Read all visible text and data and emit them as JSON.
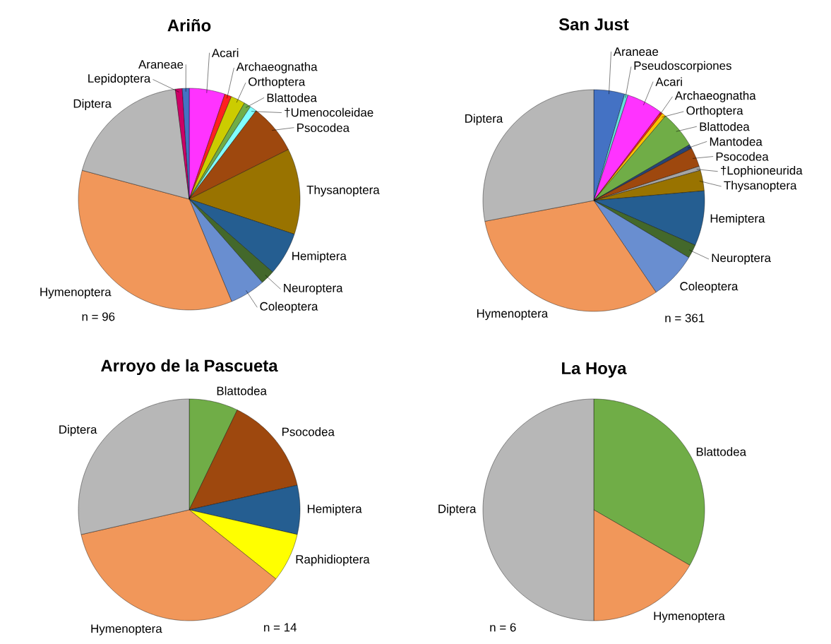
{
  "chart_data": [
    {
      "type": "pie",
      "title": "Ariño",
      "categories": [
        "Acari",
        "Archaeognatha",
        "Orthoptera",
        "Blattodea",
        "†Umenocoleidae",
        "Psocodea",
        "Thysanoptera",
        "Hemiptera",
        "Neuroptera",
        "Coleoptera",
        "Hymenoptera",
        "Diptera",
        "Lepidoptera",
        "Araneae"
      ],
      "values": [
        5.2,
        1.0,
        2.1,
        1.0,
        1.0,
        7.3,
        12.5,
        6.3,
        2.1,
        5.2,
        35.4,
        18.8,
        1.0,
        1.0
      ],
      "colors": [
        "#ff33ff",
        "#ff2020",
        "#cccc00",
        "#70ad47",
        "#80ffff",
        "#9e480e",
        "#997300",
        "#255e91",
        "#43682b",
        "#698ed0",
        "#f1975a",
        "#b7b7b7",
        "#cc0066",
        "#4472c4"
      ],
      "annotations": [
        "n = 96"
      ]
    },
    {
      "type": "pie",
      "title": "San Just",
      "categories": [
        "Araneae",
        "Pseudoscorpiones",
        "Acari",
        "Archaeognatha",
        "Orthoptera",
        "Blattodea",
        "Mantodea",
        "Psocodea",
        "†Lophioneurida",
        "Thysanoptera",
        "Hemiptera",
        "Neuroptera",
        "Coleoptera",
        "Hymenoptera",
        "Diptera"
      ],
      "values": [
        4.5,
        0.5,
        5.3,
        0.3,
        0.6,
        5.4,
        0.6,
        2.8,
        0.6,
        3.0,
        8.0,
        2.0,
        6.9,
        31.5,
        28.0
      ],
      "colors": [
        "#4472c4",
        "#66dddd",
        "#ff33ff",
        "#ff2020",
        "#ffc000",
        "#70ad47",
        "#264478",
        "#9e480e",
        "#a5a5a5",
        "#997300",
        "#255e91",
        "#43682b",
        "#698ed0",
        "#f1975a",
        "#b7b7b7"
      ],
      "annotations": [
        "n = 361"
      ]
    },
    {
      "type": "pie",
      "title": "Arroyo de la Pascueta",
      "categories": [
        "Blattodea",
        "Psocodea",
        "Hemiptera",
        "Raphidioptera",
        "Hymenoptera",
        "Diptera"
      ],
      "values": [
        7.14,
        14.29,
        7.14,
        7.14,
        35.71,
        28.58
      ],
      "colors": [
        "#70ad47",
        "#9e480e",
        "#255e91",
        "#ffff00",
        "#f1975a",
        "#b7b7b7"
      ],
      "annotations": [
        "n = 14"
      ]
    },
    {
      "type": "pie",
      "title": "La Hoya",
      "categories": [
        "Blattodea",
        "Hymenoptera",
        "Diptera"
      ],
      "values": [
        33.33,
        16.67,
        50.0
      ],
      "colors": [
        "#70ad47",
        "#f1975a",
        "#b7b7b7"
      ],
      "annotations": [
        "n = 6"
      ]
    }
  ]
}
